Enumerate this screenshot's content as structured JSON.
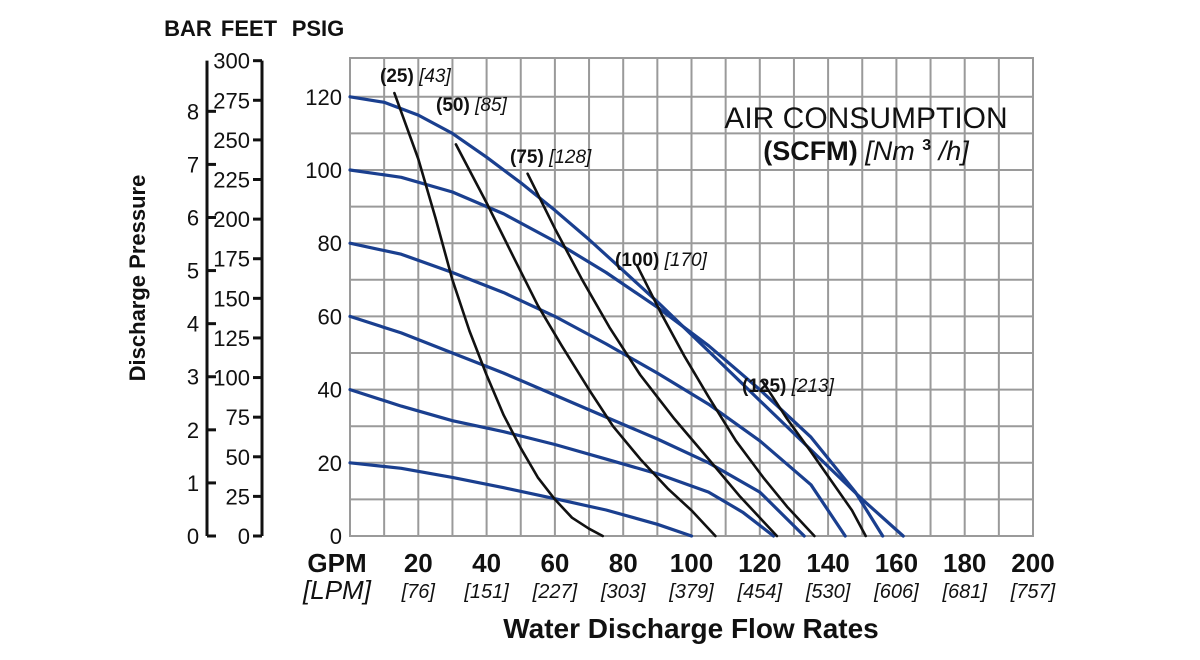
{
  "chart_data": {
    "type": "line",
    "title": "AIR CONSUMPTION",
    "subtitle": {
      "bold": "(SCFM)",
      "italic_prefix": "[Nm",
      "superscript": "3",
      "italic_suffix": "/h]"
    },
    "axis_headers": {
      "bar": "BAR",
      "feet": "FEET",
      "psig": "PSIG"
    },
    "ylabel": "Discharge Pressure",
    "xlabel": "Water Discharge Flow Rates",
    "x_unit_label": "GPM",
    "x_unit_label_alt": "[LPM]",
    "xlim": [
      0,
      200
    ],
    "ylim": [
      0,
      125
    ],
    "grid": true,
    "x_ticks": [
      {
        "gpm": "20",
        "lpm": "[76]",
        "value": 20
      },
      {
        "gpm": "40",
        "lpm": "[151]",
        "value": 40
      },
      {
        "gpm": "60",
        "lpm": "[227]",
        "value": 60
      },
      {
        "gpm": "80",
        "lpm": "[303]",
        "value": 80
      },
      {
        "gpm": "100",
        "lpm": "[379]",
        "value": 100
      },
      {
        "gpm": "120",
        "lpm": "[454]",
        "value": 120
      },
      {
        "gpm": "140",
        "lpm": "[530]",
        "value": 140
      },
      {
        "gpm": "160",
        "lpm": "[606]",
        "value": 160
      },
      {
        "gpm": "180",
        "lpm": "[681]",
        "value": 180
      },
      {
        "gpm": "200",
        "lpm": "[757]",
        "value": 200
      }
    ],
    "psig_ticks": [
      {
        "label": "0",
        "value": 0
      },
      {
        "label": "20",
        "value": 20
      },
      {
        "label": "40",
        "value": 40
      },
      {
        "label": "60",
        "value": 60
      },
      {
        "label": "80",
        "value": 80
      },
      {
        "label": "100",
        "value": 100
      },
      {
        "label": "120",
        "value": 120
      }
    ],
    "feet_ticks": [
      {
        "label": "0",
        "value": 0
      },
      {
        "label": "25",
        "value": 25
      },
      {
        "label": "50",
        "value": 50
      },
      {
        "label": "75",
        "value": 75
      },
      {
        "label": "100",
        "value": 100
      },
      {
        "label": "125",
        "value": 125
      },
      {
        "label": "150",
        "value": 150
      },
      {
        "label": "175",
        "value": 175
      },
      {
        "label": "200",
        "value": 200
      },
      {
        "label": "225",
        "value": 225
      },
      {
        "label": "250",
        "value": 250
      },
      {
        "label": "275",
        "value": 275
      },
      {
        "label": "300",
        "value": 300
      }
    ],
    "bar_ticks": [
      {
        "label": "0",
        "value": 0
      },
      {
        "label": "1",
        "value": 1
      },
      {
        "label": "2",
        "value": 2
      },
      {
        "label": "3",
        "value": 3
      },
      {
        "label": "4",
        "value": 4
      },
      {
        "label": "5",
        "value": 5
      },
      {
        "label": "6",
        "value": 6
      },
      {
        "label": "7",
        "value": 7
      },
      {
        "label": "8",
        "value": 8
      }
    ],
    "pressure_curves": [
      {
        "color": "#1a3f8f",
        "points": [
          [
            0,
            20
          ],
          [
            15,
            18.5
          ],
          [
            30,
            16
          ],
          [
            45,
            13.2
          ],
          [
            60,
            10.2
          ],
          [
            75,
            7.1
          ],
          [
            90,
            3.2
          ],
          [
            100,
            0
          ]
        ]
      },
      {
        "color": "#1a3f8f",
        "points": [
          [
            0,
            40
          ],
          [
            15,
            35.5
          ],
          [
            30,
            31.5
          ],
          [
            45,
            28.5
          ],
          [
            60,
            25
          ],
          [
            75,
            21
          ],
          [
            90,
            17
          ],
          [
            105,
            12
          ],
          [
            115,
            6.5
          ],
          [
            124,
            0
          ]
        ]
      },
      {
        "color": "#1a3f8f",
        "points": [
          [
            0,
            60
          ],
          [
            15,
            55.5
          ],
          [
            30,
            50
          ],
          [
            45,
            44.5
          ],
          [
            60,
            38.5
          ],
          [
            75,
            32.5
          ],
          [
            90,
            26.5
          ],
          [
            105,
            20
          ],
          [
            120,
            12
          ],
          [
            133,
            0
          ]
        ]
      },
      {
        "color": "#1a3f8f",
        "points": [
          [
            0,
            80
          ],
          [
            15,
            77
          ],
          [
            30,
            72
          ],
          [
            45,
            66.5
          ],
          [
            60,
            60
          ],
          [
            75,
            52.5
          ],
          [
            90,
            44.5
          ],
          [
            105,
            36
          ],
          [
            120,
            26
          ],
          [
            135,
            14
          ],
          [
            145,
            0
          ]
        ]
      },
      {
        "color": "#1a3f8f",
        "points": [
          [
            0,
            100
          ],
          [
            15,
            98
          ],
          [
            30,
            94
          ],
          [
            45,
            88
          ],
          [
            60,
            80.5
          ],
          [
            75,
            72
          ],
          [
            90,
            62.5
          ],
          [
            105,
            52
          ],
          [
            120,
            40
          ],
          [
            135,
            27
          ],
          [
            148,
            12
          ],
          [
            156,
            0
          ]
        ]
      },
      {
        "color": "#1a3f8f",
        "points": [
          [
            0,
            120
          ],
          [
            10,
            118.5
          ],
          [
            20,
            115
          ],
          [
            30,
            110
          ],
          [
            40,
            103.5
          ],
          [
            50,
            96.5
          ],
          [
            60,
            89
          ],
          [
            70,
            81
          ],
          [
            80,
            72.5
          ],
          [
            90,
            64
          ],
          [
            100,
            55
          ],
          [
            110,
            46
          ],
          [
            120,
            37
          ],
          [
            130,
            28
          ],
          [
            140,
            19
          ],
          [
            150,
            10
          ],
          [
            162,
            0
          ]
        ]
      }
    ],
    "air_curves": [
      {
        "scfm": "(25)",
        "nm3h": "[43]",
        "color": "#111111",
        "points": [
          [
            13,
            121
          ],
          [
            20,
            103
          ],
          [
            25,
            87
          ],
          [
            30,
            70
          ],
          [
            35,
            56
          ],
          [
            40,
            44
          ],
          [
            45,
            33
          ],
          [
            50,
            24
          ],
          [
            55,
            16
          ],
          [
            60,
            10
          ],
          [
            65,
            5
          ],
          [
            70,
            2
          ],
          [
            74,
            0
          ]
        ]
      },
      {
        "scfm": "(50)",
        "nm3h": "[85]",
        "color": "#111111",
        "points": [
          [
            31,
            107
          ],
          [
            40,
            91
          ],
          [
            48,
            76
          ],
          [
            55,
            63
          ],
          [
            62,
            52
          ],
          [
            70,
            40
          ],
          [
            77,
            30
          ],
          [
            85,
            21
          ],
          [
            93,
            13
          ],
          [
            100,
            7
          ],
          [
            107,
            0
          ]
        ]
      },
      {
        "scfm": "(75)",
        "nm3h": "[128]",
        "color": "#111111",
        "points": [
          [
            52,
            99
          ],
          [
            60,
            84
          ],
          [
            68,
            70
          ],
          [
            76,
            57
          ],
          [
            85,
            44
          ],
          [
            95,
            32
          ],
          [
            105,
            21
          ],
          [
            114,
            11
          ],
          [
            121,
            4
          ],
          [
            125,
            0
          ]
        ]
      },
      {
        "scfm": "(100)",
        "nm3h": "[170]",
        "color": "#111111",
        "points": [
          [
            84,
            74
          ],
          [
            91,
            61
          ],
          [
            98,
            49
          ],
          [
            105,
            38
          ],
          [
            113,
            26
          ],
          [
            121,
            16
          ],
          [
            128,
            8
          ],
          [
            136,
            0
          ]
        ]
      },
      {
        "scfm": "(125)",
        "nm3h": "[213]",
        "color": "#111111",
        "points": [
          [
            121,
            42
          ],
          [
            128,
            32
          ],
          [
            135,
            23
          ],
          [
            141,
            15
          ],
          [
            147,
            7
          ],
          [
            151,
            0
          ]
        ]
      }
    ],
    "series_labels": [
      {
        "scfm": "(25)",
        "nm3h": "[43]"
      },
      {
        "scfm": "(50)",
        "nm3h": "[85]"
      },
      {
        "scfm": "(75)",
        "nm3h": "[128]"
      },
      {
        "scfm": "(100)",
        "nm3h": "[170]"
      },
      {
        "scfm": "(125)",
        "nm3h": "[213]"
      }
    ]
  }
}
